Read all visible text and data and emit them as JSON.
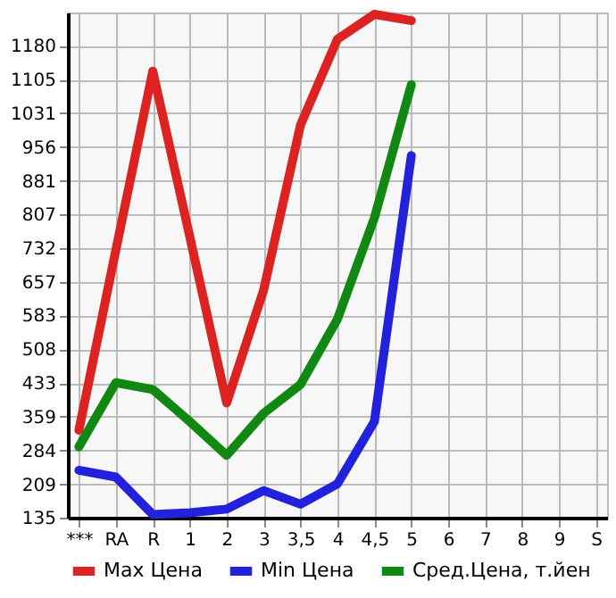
{
  "chart_data": {
    "type": "line",
    "categories": [
      "***",
      "RA",
      "R",
      "1",
      "2",
      "3",
      "3,5",
      "4",
      "4,5",
      "5",
      "6",
      "7",
      "8",
      "9",
      "S"
    ],
    "series": [
      {
        "name": "Max Цена",
        "color": "#dd2222",
        "values": [
          329,
          728,
          1124,
          758,
          389,
          639,
          1005,
          1195,
          1250,
          1236,
          null,
          null,
          null,
          null,
          null
        ]
      },
      {
        "name": "Min Цена",
        "color": "#2222dd",
        "values": [
          240,
          225,
          142,
          146,
          154,
          195,
          165,
          210,
          348,
          937,
          null,
          null,
          null,
          null,
          null
        ]
      },
      {
        "name": "Сред.Цена, т.йен",
        "color": "#118811",
        "values": [
          292,
          434,
          419,
          348,
          273,
          366,
          430,
          575,
          799,
          1094,
          null,
          null,
          null,
          null,
          null
        ]
      }
    ],
    "ylim": [
      135,
      1254
    ],
    "yticks": [
      135,
      209,
      284,
      359,
      433,
      508,
      583,
      657,
      732,
      807,
      881,
      956,
      1031,
      1105,
      1180
    ],
    "grid": true,
    "legend": "bottom",
    "line_style": "solid",
    "marker": "none"
  }
}
